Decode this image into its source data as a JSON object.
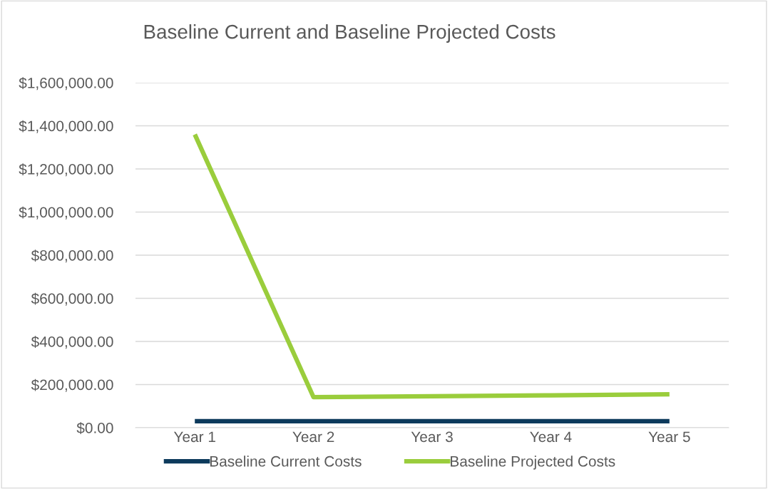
{
  "chart_data": {
    "type": "line",
    "title": "Baseline Current and Baseline Projected Costs",
    "categories": [
      "Year 1",
      "Year 2",
      "Year 3",
      "Year 4",
      "Year 5"
    ],
    "series": [
      {
        "name": "Baseline Current Costs",
        "color": "#0d3a5c",
        "values": [
          30000,
          30000,
          30000,
          30000,
          30000
        ]
      },
      {
        "name": "Baseline Projected Costs",
        "color": "#9acd3c",
        "values": [
          1360000,
          142000,
          146000,
          150000,
          155000
        ]
      }
    ],
    "ylim": [
      0,
      1600000
    ],
    "yticks": [
      {
        "value": 0,
        "label": "$0.00"
      },
      {
        "value": 200000,
        "label": "$200,000.00"
      },
      {
        "value": 400000,
        "label": "$400,000.00"
      },
      {
        "value": 600000,
        "label": "$600,000.00"
      },
      {
        "value": 800000,
        "label": "$800,000.00"
      },
      {
        "value": 1000000,
        "label": "$1,000,000.00"
      },
      {
        "value": 1200000,
        "label": "$1,200,000.00"
      },
      {
        "value": 1400000,
        "label": "$1,400,000.00"
      },
      {
        "value": 1600000,
        "label": "$1,600,000.00"
      }
    ],
    "grid": "y",
    "legend": "bottom",
    "marker": "none",
    "line_style": "solid"
  }
}
